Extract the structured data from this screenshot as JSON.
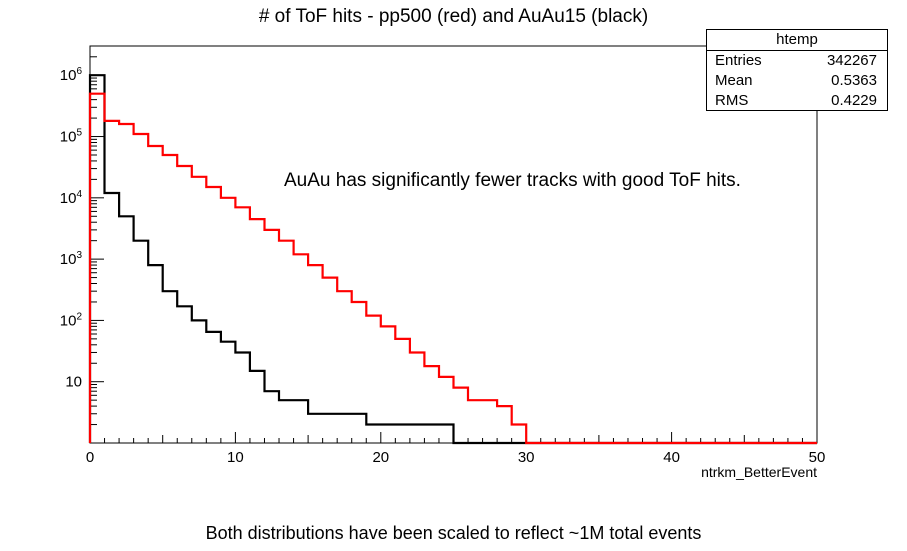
{
  "title": "# of ToF hits - pp500 (red) and AuAu15 (black)",
  "annotation": "AuAu has significantly fewer tracks with good ToF hits.",
  "caption": "Both distributions have been scaled to reflect ~1M total events",
  "stats_box": {
    "name": "htemp",
    "rows": [
      {
        "label": "Entries",
        "value": "342267"
      },
      {
        "label": "Mean",
        "value": "0.5363"
      },
      {
        "label": "RMS",
        "value": "0.4229"
      }
    ]
  },
  "chart_data": {
    "type": "histogram",
    "xlabel": "ntrkm_BetterEvent",
    "xlim": [
      0,
      50
    ],
    "bin_width": 1,
    "y_scale": "log",
    "ylim": [
      1,
      3000000
    ],
    "xticks": [
      0,
      10,
      20,
      30,
      40,
      50
    ],
    "yticks": [
      {
        "value": 10,
        "label": "10"
      },
      {
        "value": 100,
        "base": "10",
        "exp": "2"
      },
      {
        "value": 1000,
        "base": "10",
        "exp": "3"
      },
      {
        "value": 10000,
        "base": "10",
        "exp": "4"
      },
      {
        "value": 100000,
        "base": "10",
        "exp": "5"
      },
      {
        "value": 1000000,
        "base": "10",
        "exp": "6"
      }
    ],
    "series": [
      {
        "color": "#000000",
        "values": [
          1000000,
          12000,
          5000,
          2000,
          800,
          300,
          170,
          100,
          65,
          45,
          30,
          15,
          7,
          5,
          5,
          3,
          3,
          3,
          3,
          2,
          2,
          2,
          2,
          2,
          2,
          1,
          1,
          1,
          1,
          1,
          1,
          1,
          1,
          1,
          1,
          1,
          1,
          1,
          1,
          1,
          1,
          1,
          1,
          1,
          1,
          1,
          1,
          1,
          1,
          1
        ]
      },
      {
        "color": "#ff0000",
        "values": [
          500000,
          180000,
          160000,
          110000,
          70000,
          50000,
          33000,
          22000,
          15000,
          10000,
          7000,
          4500,
          3000,
          2000,
          1200,
          800,
          500,
          300,
          200,
          120,
          80,
          50,
          30,
          18,
          12,
          8,
          5,
          5,
          4,
          2,
          1,
          1,
          1,
          1,
          1,
          1,
          1,
          1,
          1,
          1,
          1,
          1,
          1,
          1,
          1,
          1,
          1,
          1,
          1,
          1
        ]
      }
    ]
  }
}
